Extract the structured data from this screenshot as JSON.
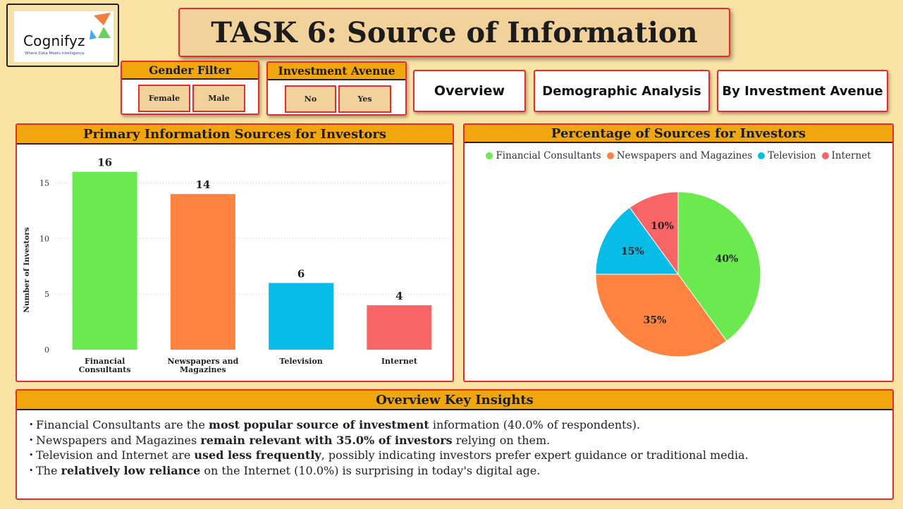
{
  "logo": {
    "name": "Cognifyz",
    "tagline": "Where Data Meets Intelligence",
    "colors": [
      "#f47c3c",
      "#6ad05a",
      "#3fa9f5"
    ]
  },
  "page_title": "TASK 6: Source of Information",
  "filters": [
    {
      "title": "Gender Filter",
      "options": [
        "Female",
        "Male"
      ]
    },
    {
      "title": "Investment Avenue",
      "options": [
        "No",
        "Yes"
      ]
    }
  ],
  "nav": {
    "overview": "Overview",
    "demographic": "Demographic Analysis",
    "by_avenue": "By Investment Avenue"
  },
  "bar_panel": {
    "title": "Primary Information Sources for Investors"
  },
  "pie_panel": {
    "title": "Percentage of Sources for Investors"
  },
  "chart_data": [
    {
      "type": "bar",
      "title": "Primary Information Sources for Investors",
      "categories": [
        [
          "Financial",
          "Consultants"
        ],
        [
          "Newspapers and",
          "Magazines"
        ],
        [
          "Television"
        ],
        [
          "Internet"
        ]
      ],
      "values": [
        16,
        14,
        6,
        4
      ],
      "colors": [
        "#6aea4f",
        "#fe8340",
        "#07bde8",
        "#f86567"
      ],
      "xlabel": "",
      "ylabel": "Number of Investors",
      "ylim": [
        0,
        17.5
      ],
      "yticks": [
        0,
        5,
        10,
        15
      ],
      "grid": true,
      "data_labels": true
    },
    {
      "type": "pie",
      "title": "Percentage of Sources for Investors",
      "labels": [
        "Financial Consultants",
        "Newspapers and Magazines",
        "Television",
        "Internet"
      ],
      "values": [
        40,
        35,
        15,
        10
      ],
      "value_labels": [
        "40%",
        "35%",
        "15%",
        "10%"
      ],
      "colors": [
        "#6aea4f",
        "#fe8340",
        "#07bde8",
        "#f86567"
      ],
      "legend": "top-center"
    }
  ],
  "insights": {
    "title": "Overview Key Insights",
    "items": [
      {
        "parts": [
          {
            "t": "Financial Consultants are the ",
            "b": false
          },
          {
            "t": "most popular source of investment",
            "b": true
          },
          {
            "t": " information (40.0% of respondents).",
            "b": false
          }
        ]
      },
      {
        "parts": [
          {
            "t": "Newspapers and Magazines ",
            "b": false
          },
          {
            "t": "remain relevant with 35.0% of investors",
            "b": true
          },
          {
            "t": " relying on them.",
            "b": false
          }
        ]
      },
      {
        "parts": [
          {
            "t": "Television and Internet are ",
            "b": false
          },
          {
            "t": "used less frequently",
            "b": true
          },
          {
            "t": ", possibly indicating investors prefer expert guidance or traditional media.",
            "b": false
          }
        ]
      },
      {
        "parts": [
          {
            "t": "The ",
            "b": false
          },
          {
            "t": "relatively low reliance",
            "b": true
          },
          {
            "t": " on the Internet (10.0%) is surprising in today's digital age.",
            "b": false
          }
        ]
      }
    ]
  }
}
